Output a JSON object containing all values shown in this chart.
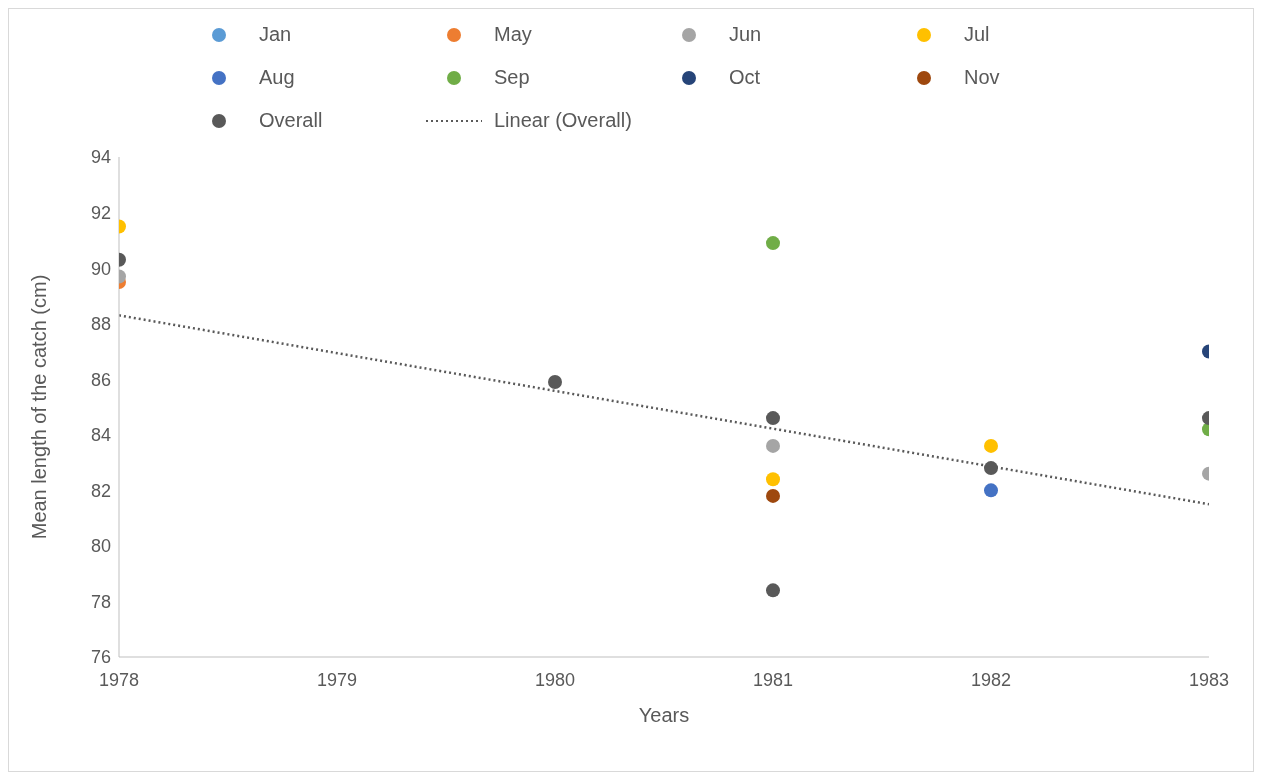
{
  "chart_data": {
    "type": "scatter",
    "xlabel": "Years",
    "ylabel": "Mean length of the catch (cm)",
    "xlim": [
      1978,
      1983
    ],
    "xticks": [
      1978,
      1979,
      1980,
      1981,
      1982,
      1983
    ],
    "ylim": [
      76,
      94
    ],
    "yticks": [
      76,
      78,
      80,
      82,
      84,
      86,
      88,
      90,
      92,
      94
    ],
    "grid": false,
    "legend": "top",
    "marker": "circle",
    "series": [
      {
        "name": "Jan",
        "color": "#5b9bd5"
      },
      {
        "name": "May",
        "color": "#ed7d31",
        "x": [
          1978
        ],
        "values": [
          89.5
        ]
      },
      {
        "name": "Jun",
        "color": "#a5a5a5",
        "x": [
          1978,
          1981,
          1983
        ],
        "values": [
          89.7,
          83.6,
          82.6
        ]
      },
      {
        "name": "Jul",
        "color": "#ffc000",
        "x": [
          1978,
          1981,
          1982
        ],
        "values": [
          91.5,
          82.4,
          83.6
        ]
      },
      {
        "name": "Aug",
        "color": "#4472c4",
        "x": [
          1982
        ],
        "values": [
          82.0
        ]
      },
      {
        "name": "Sep",
        "color": "#70ad47",
        "x": [
          1981,
          1983
        ],
        "values": [
          90.9,
          84.2
        ]
      },
      {
        "name": "Oct",
        "color": "#264478",
        "x": [
          1983
        ],
        "values": [
          87.0
        ]
      },
      {
        "name": "Nov",
        "color": "#9e480e",
        "x": [
          1981
        ],
        "values": [
          81.8
        ]
      },
      {
        "name": "Overall",
        "color": "#595959",
        "x": [
          1978,
          1980,
          1981,
          1981,
          1982,
          1983
        ],
        "values": [
          90.3,
          85.9,
          84.6,
          78.4,
          82.8,
          84.6
        ]
      },
      {
        "name": "Linear (Overall)",
        "type": "line",
        "line_style": "dotted",
        "marker": "none",
        "color": "#595959",
        "x": [
          1978,
          1983
        ],
        "values": [
          88.3,
          81.5
        ]
      }
    ]
  }
}
